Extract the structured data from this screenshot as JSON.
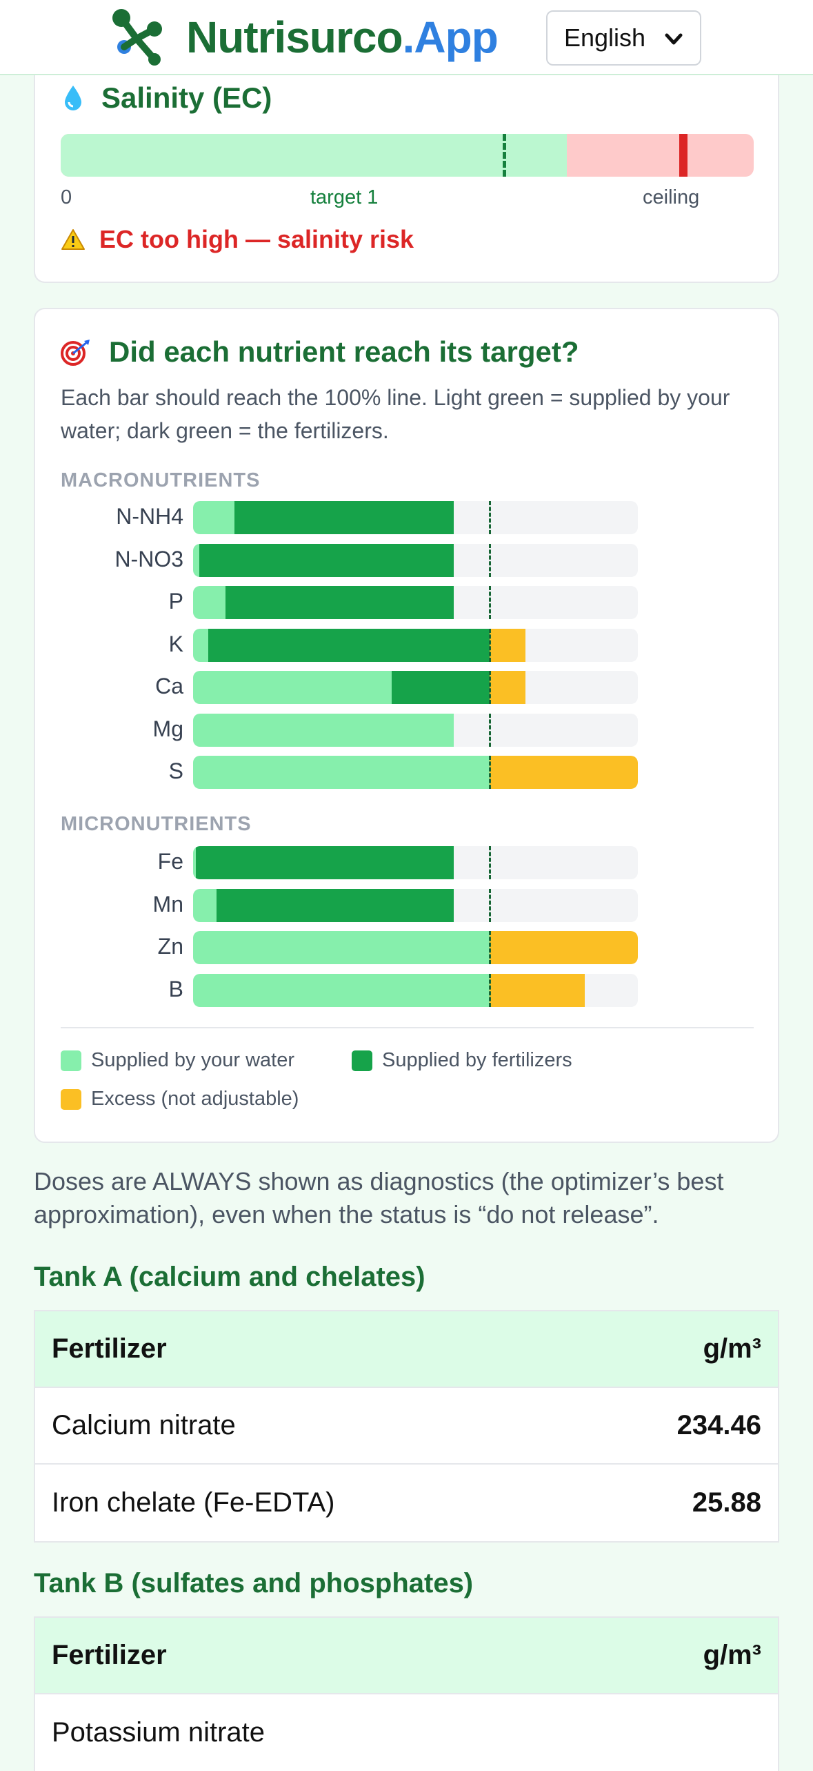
{
  "header": {
    "brand_part1": "Nutrisurco",
    "brand_part2": ".App",
    "language": "English"
  },
  "ec_card": {
    "title": "Salinity (EC)",
    "label_zero": "0",
    "label_target": "target 1",
    "label_ceiling": "ceiling",
    "warning": "EC too high — salinity risk",
    "fill_fraction": 0.73,
    "target_fraction": 0.638,
    "ceiling_fraction": 0.893
  },
  "chart_card": {
    "title": "Did each nutrient reach its target?",
    "description": "Each bar should reach the 100% line. Light green = supplied by your water; dark green = the fertilizers.",
    "macro_label": "MACRONUTRIENTS",
    "micro_label": "MICRONUTRIENTS",
    "legend": {
      "water": "Supplied by your water",
      "fertilizers": "Supplied by fertilizers",
      "excess": "Excess (not adjustable)"
    }
  },
  "chart_data": {
    "type": "bar",
    "orientation": "horizontal",
    "stacked": true,
    "unit": "% of target",
    "target_line": 100,
    "xlim": [
      0,
      150
    ],
    "groups": [
      {
        "name": "MACRONUTRIENTS",
        "categories": [
          "N-NH4",
          "N-NO3",
          "P",
          "K",
          "Ca",
          "Mg",
          "S"
        ],
        "series": [
          {
            "name": "Supplied by your water",
            "values": [
              14,
              2,
              11,
              5,
              67,
              88,
              100
            ]
          },
          {
            "name": "Supplied by fertilizers",
            "values": [
              74,
              86,
              77,
              95,
              33,
              0,
              0
            ]
          },
          {
            "name": "Excess (not adjustable)",
            "values": [
              0,
              0,
              0,
              12,
              12,
              0,
              50
            ]
          }
        ]
      },
      {
        "name": "MICRONUTRIENTS",
        "categories": [
          "Fe",
          "Mn",
          "Zn",
          "B"
        ],
        "series": [
          {
            "name": "Supplied by your water",
            "values": [
              1,
              8,
              100,
              100
            ]
          },
          {
            "name": "Supplied by fertilizers",
            "values": [
              87,
              80,
              0,
              0
            ]
          },
          {
            "name": "Excess (not adjustable)",
            "values": [
              0,
              0,
              50,
              32
            ]
          }
        ]
      }
    ],
    "colors": {
      "water": "#86efac",
      "fertilizers": "#16a34a",
      "excess": "#fbbf24",
      "track": "#f3f4f6"
    }
  },
  "note": "Doses are ALWAYS shown as diagnostics (the optimizer’s best approximation), even when the status is “do not release”.",
  "tank_a": {
    "title": "Tank A (calcium and chelates)",
    "col_fertilizer": "Fertilizer",
    "col_unit": "g/m³",
    "rows": [
      {
        "name": "Calcium nitrate",
        "value": "234.46"
      },
      {
        "name": "Iron chelate (Fe-EDTA)",
        "value": "25.88"
      }
    ]
  },
  "tank_b": {
    "title": "Tank B (sulfates and phosphates)",
    "col_fertilizer": "Fertilizer",
    "col_unit": "g/m³",
    "rows": [
      {
        "name": "Potassium nitrate",
        "value": ""
      }
    ]
  }
}
